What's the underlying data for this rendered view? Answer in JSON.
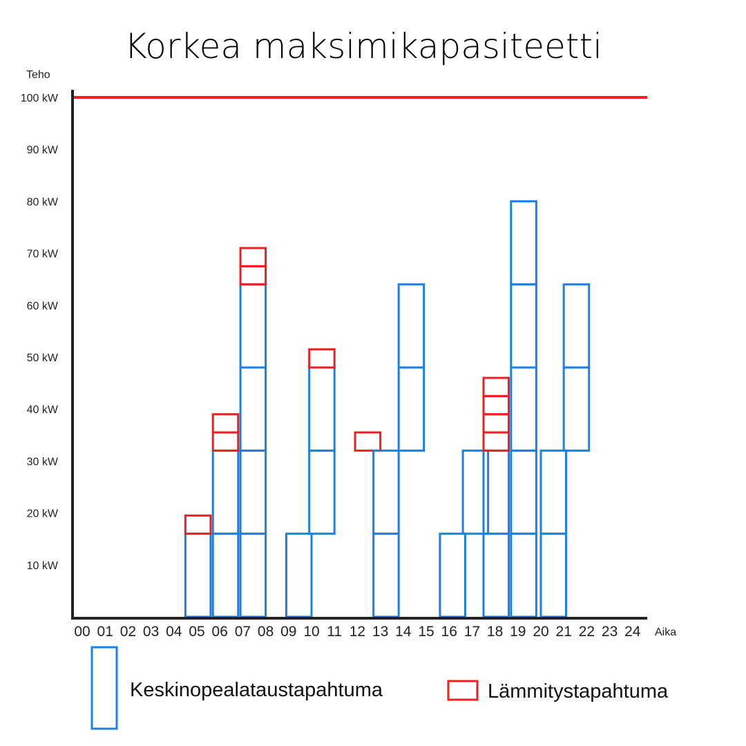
{
  "chart_data": {
    "type": "bar",
    "title": "Korkea maksimikapasiteetti",
    "ylabel": "Teho",
    "xlabel": "Aika",
    "ylim": [
      0,
      100
    ],
    "yticks": [
      "10 kW",
      "20 kW",
      "30 kW",
      "40 kW",
      "50 kW",
      "60 kW",
      "70 kW",
      "80 kW",
      "90 kW",
      "100 kW"
    ],
    "ytick_values": [
      10,
      20,
      30,
      40,
      50,
      60,
      70,
      80,
      90,
      100
    ],
    "xticks": [
      "00",
      "01",
      "02",
      "03",
      "04",
      "05",
      "06",
      "07",
      "08",
      "09",
      "10",
      "11",
      "12",
      "13",
      "14",
      "15",
      "16",
      "17",
      "18",
      "19",
      "20",
      "21",
      "22",
      "23",
      "24"
    ],
    "max_capacity": {
      "value": 100,
      "color": "#f01f1f"
    },
    "grid": false,
    "series": [
      {
        "name": "Keskinopealataustapahtuma",
        "color": "#1a7fe8"
      },
      {
        "name": "Lämmitystapahtuma",
        "color": "#f01f1f"
      }
    ],
    "blocks": [
      {
        "series": 0,
        "x0": 4.5,
        "x1": 5.6,
        "y0": 0,
        "y1": 16
      },
      {
        "series": 1,
        "x0": 4.5,
        "x1": 5.6,
        "y0": 16,
        "y1": 19.5
      },
      {
        "series": 0,
        "x0": 5.7,
        "x1": 6.8,
        "y0": 0,
        "y1": 16
      },
      {
        "series": 0,
        "x0": 5.7,
        "x1": 6.8,
        "y0": 16,
        "y1": 32
      },
      {
        "series": 1,
        "x0": 5.7,
        "x1": 6.8,
        "y0": 32,
        "y1": 35.5
      },
      {
        "series": 1,
        "x0": 5.7,
        "x1": 6.8,
        "y0": 35.5,
        "y1": 39
      },
      {
        "series": 0,
        "x0": 6.9,
        "x1": 8.0,
        "y0": 0,
        "y1": 16
      },
      {
        "series": 0,
        "x0": 6.9,
        "x1": 8.0,
        "y0": 16,
        "y1": 32
      },
      {
        "series": 0,
        "x0": 6.9,
        "x1": 8.0,
        "y0": 32,
        "y1": 48
      },
      {
        "series": 0,
        "x0": 6.9,
        "x1": 8.0,
        "y0": 48,
        "y1": 64
      },
      {
        "series": 1,
        "x0": 6.9,
        "x1": 8.0,
        "y0": 64,
        "y1": 67.5
      },
      {
        "series": 1,
        "x0": 6.9,
        "x1": 8.0,
        "y0": 67.5,
        "y1": 71
      },
      {
        "series": 0,
        "x0": 8.9,
        "x1": 10.0,
        "y0": 0,
        "y1": 16
      },
      {
        "series": 0,
        "x0": 9.9,
        "x1": 11.0,
        "y0": 16,
        "y1": 32
      },
      {
        "series": 0,
        "x0": 9.9,
        "x1": 11.0,
        "y0": 32,
        "y1": 48
      },
      {
        "series": 1,
        "x0": 9.9,
        "x1": 11.0,
        "y0": 48,
        "y1": 51.5
      },
      {
        "series": 1,
        "x0": 11.9,
        "x1": 13.0,
        "y0": 32,
        "y1": 35.5
      },
      {
        "series": 0,
        "x0": 12.7,
        "x1": 13.8,
        "y0": 0,
        "y1": 16
      },
      {
        "series": 0,
        "x0": 12.7,
        "x1": 13.8,
        "y0": 16,
        "y1": 32
      },
      {
        "series": 0,
        "x0": 13.8,
        "x1": 14.9,
        "y0": 32,
        "y1": 48
      },
      {
        "series": 0,
        "x0": 13.8,
        "x1": 14.9,
        "y0": 48,
        "y1": 64
      },
      {
        "series": 0,
        "x0": 15.6,
        "x1": 16.7,
        "y0": 0,
        "y1": 16
      },
      {
        "series": 0,
        "x0": 16.6,
        "x1": 17.7,
        "y0": 16,
        "y1": 32
      },
      {
        "series": 0,
        "x0": 17.5,
        "x1": 18.6,
        "y0": 0,
        "y1": 16
      },
      {
        "series": 0,
        "x0": 17.5,
        "x1": 18.6,
        "y0": 16,
        "y1": 32
      },
      {
        "series": 1,
        "x0": 17.5,
        "x1": 18.6,
        "y0": 32,
        "y1": 35.5
      },
      {
        "series": 1,
        "x0": 17.5,
        "x1": 18.6,
        "y0": 35.5,
        "y1": 39
      },
      {
        "series": 1,
        "x0": 17.5,
        "x1": 18.6,
        "y0": 39,
        "y1": 42.5
      },
      {
        "series": 1,
        "x0": 17.5,
        "x1": 18.6,
        "y0": 42.5,
        "y1": 46
      },
      {
        "series": 0,
        "x0": 18.7,
        "x1": 19.8,
        "y0": 0,
        "y1": 16
      },
      {
        "series": 0,
        "x0": 18.7,
        "x1": 19.8,
        "y0": 16,
        "y1": 32
      },
      {
        "series": 0,
        "x0": 18.7,
        "x1": 19.8,
        "y0": 32,
        "y1": 48
      },
      {
        "series": 0,
        "x0": 18.7,
        "x1": 19.8,
        "y0": 48,
        "y1": 64
      },
      {
        "series": 0,
        "x0": 18.7,
        "x1": 19.8,
        "y0": 64,
        "y1": 80
      },
      {
        "series": 0,
        "x0": 20.0,
        "x1": 21.1,
        "y0": 0,
        "y1": 16
      },
      {
        "series": 0,
        "x0": 20.0,
        "x1": 21.1,
        "y0": 16,
        "y1": 32
      },
      {
        "series": 0,
        "x0": 21.0,
        "x1": 22.1,
        "y0": 32,
        "y1": 48
      },
      {
        "series": 0,
        "x0": 21.0,
        "x1": 22.1,
        "y0": 48,
        "y1": 64
      }
    ]
  },
  "legend": {
    "items": [
      {
        "label": "Keskinopealataustapahtuma",
        "color": "#1a7fe8"
      },
      {
        "label": "Lämmitystapahtuma",
        "color": "#f01f1f"
      }
    ]
  }
}
